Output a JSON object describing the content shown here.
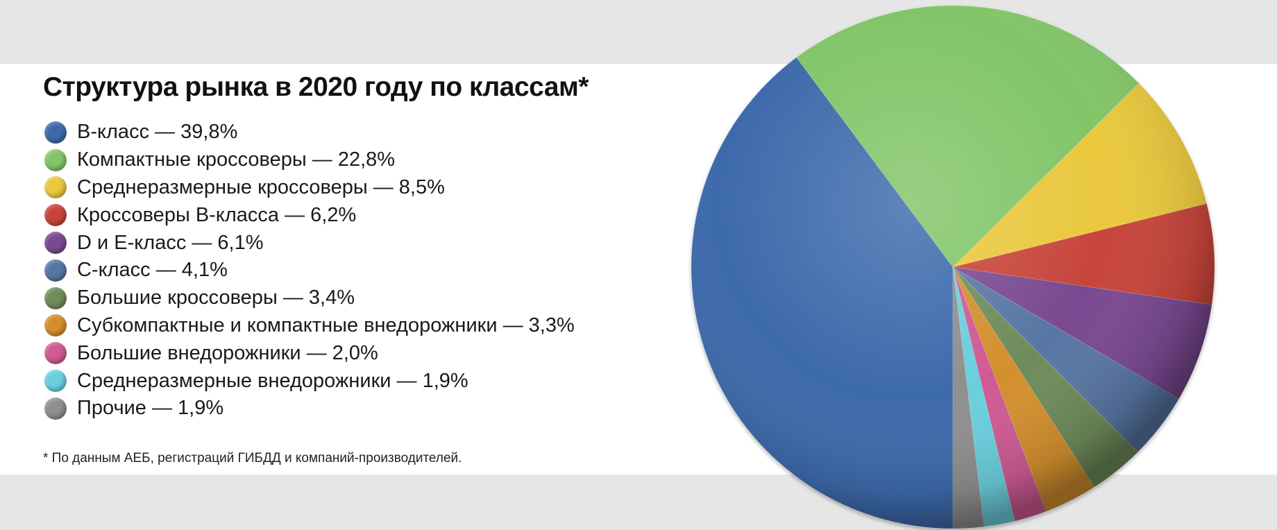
{
  "chart_data": {
    "type": "pie",
    "title": "Структура рынка в 2020 году по классам*",
    "footnote": "* По данным АЕБ, регистраций ГИБДД и компаний-производителей.",
    "slices": [
      {
        "label": "B-класс",
        "value": 39.8,
        "legend": "B-класс — 39,8%",
        "color": "#3e6aab"
      },
      {
        "label": "Компактные кроссоверы",
        "value": 22.8,
        "legend": "Компактные кроссоверы — 22,8%",
        "color": "#82c567"
      },
      {
        "label": "Среднеразмерные кроссоверы",
        "value": 8.5,
        "legend": "Среднеразмерные кроссоверы — 8,5%",
        "color": "#e9c83c"
      },
      {
        "label": "Кроссоверы B-класса",
        "value": 6.2,
        "legend": "Кроссоверы B-класса — 6,2%",
        "color": "#c7443a"
      },
      {
        "label": "D и E-класс",
        "value": 6.1,
        "legend": "D и E-класс — 6,1%",
        "color": "#7a4a91"
      },
      {
        "label": "C-класс",
        "value": 4.1,
        "legend": "C-класс — 4,1%",
        "color": "#5876a4"
      },
      {
        "label": "Большие кроссоверы",
        "value": 3.4,
        "legend": "Большие кроссоверы — 3,4%",
        "color": "#6e8c5a"
      },
      {
        "label": "Субкомпактные и компактные внедорожники",
        "value": 3.3,
        "legend": "Субкомпактные и компактные внедорожники — 3,3%",
        "color": "#d38f2e"
      },
      {
        "label": "Большие внедорожники",
        "value": 2.0,
        "legend": "Большие внедорожники — 2,0%",
        "color": "#cf5a94"
      },
      {
        "label": "Среднеразмерные внедорожники",
        "value": 1.9,
        "legend": "Среднеразмерные внедорожники — 1,9%",
        "color": "#6acfdd"
      },
      {
        "label": "Прочие",
        "value": 1.9,
        "legend": "Прочие — 1,9%",
        "color": "#8f8f8f"
      }
    ],
    "legend_position": "left",
    "start_direction": "bottom",
    "direction": "counterclockwise"
  }
}
